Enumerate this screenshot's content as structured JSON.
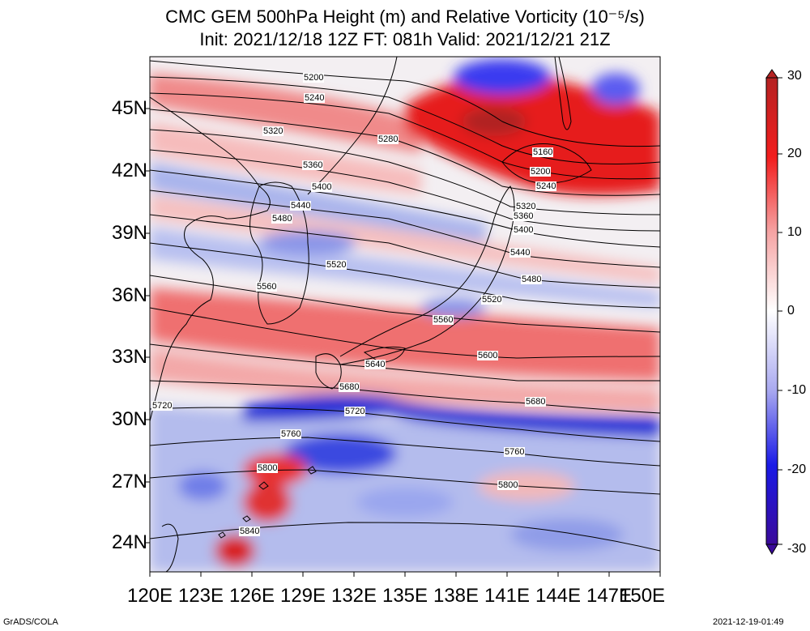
{
  "title": {
    "line1": "CMC GEM 500hPa Height (m) and Relative Vorticity (10⁻⁵/s)",
    "line2": "Init: 2021/12/18 12Z  FT: 081h  Valid: 2021/12/21 21Z"
  },
  "map": {
    "lon_range": [
      120,
      150
    ],
    "lat_range": [
      22.5,
      47.5
    ],
    "lat_ticks": [
      "45N",
      "42N",
      "39N",
      "36N",
      "33N",
      "30N",
      "27N",
      "24N"
    ],
    "lon_ticks": [
      "120E",
      "123E",
      "126E",
      "129E",
      "132E",
      "135E",
      "138E",
      "141E",
      "144E",
      "147E",
      "150E"
    ]
  },
  "height_contours": [
    {
      "value": "5160",
      "label": "5160"
    },
    {
      "value": "5200",
      "label": "5200"
    },
    {
      "value": "5240",
      "label": "5240"
    },
    {
      "value": "5280",
      "label": "5280"
    },
    {
      "value": "5320",
      "label": "5320"
    },
    {
      "value": "5360",
      "label": "5360"
    },
    {
      "value": "5400",
      "label": "5400"
    },
    {
      "value": "5440",
      "label": "5440"
    },
    {
      "value": "5480",
      "label": "5480"
    },
    {
      "value": "5520",
      "label": "5520"
    },
    {
      "value": "5560",
      "label": "5560"
    },
    {
      "value": "5600",
      "label": "5600"
    },
    {
      "value": "5640",
      "label": "5640"
    },
    {
      "value": "5680",
      "label": "5680"
    },
    {
      "value": "5720",
      "label": "5720"
    },
    {
      "value": "5760",
      "label": "5760"
    },
    {
      "value": "5800",
      "label": "5800"
    },
    {
      "value": "5840",
      "label": "5840"
    }
  ],
  "colorbar": {
    "ticks": [
      "30",
      "20",
      "10",
      "0",
      "-10",
      "-20",
      "-30"
    ],
    "colors": {
      "max": "#b01515",
      "pos": "#f21d1d",
      "zero": "#ffffff",
      "neg": "#1a1ae6",
      "min": "#3a0a9a"
    }
  },
  "footer": {
    "left": "GrADS/COLA",
    "right": "2021-12-19-01:49"
  }
}
